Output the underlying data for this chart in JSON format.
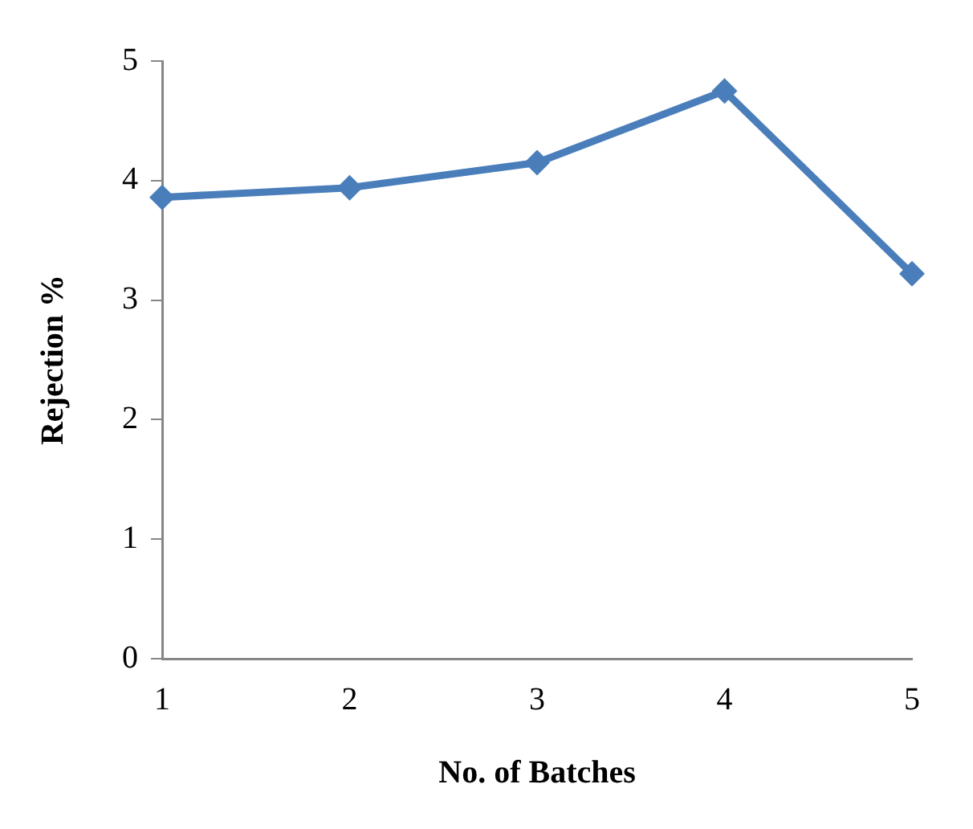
{
  "chart_data": {
    "type": "line",
    "xlabel": "No. of Batches",
    "ylabel": "Rejection %",
    "categories": [
      "1",
      "2",
      "3",
      "4",
      "5"
    ],
    "series": [
      {
        "color": "#4a7ebb",
        "values": [
          3.86,
          3.94,
          4.15,
          4.75,
          3.22
        ]
      }
    ],
    "ylim": [
      0,
      5
    ],
    "yticks": [
      0,
      1,
      2,
      3,
      4,
      5
    ],
    "grid": false,
    "legend": false,
    "marker": "diamond",
    "line_style": "solid"
  }
}
